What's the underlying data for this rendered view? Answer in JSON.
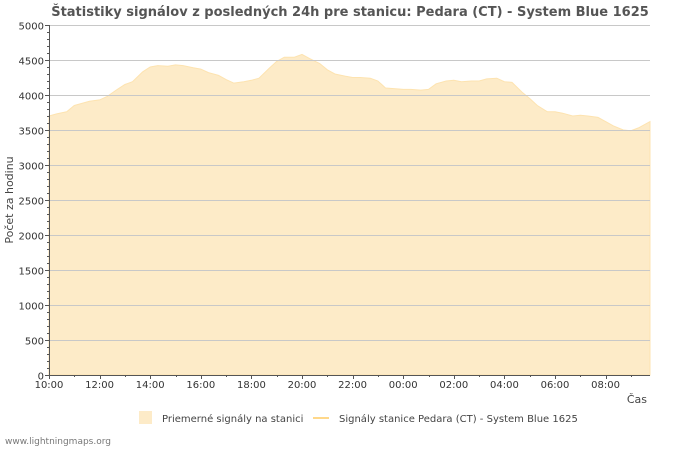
{
  "chart_data": {
    "type": "area",
    "title": "Štatistiky signálov z posledných 24h pre stanicu: Pedara (CT) - System Blue 1625",
    "xlabel": "Čas",
    "ylabel": "Počet za hodinu",
    "ylim": [
      0,
      5000
    ],
    "y_ticks": [
      "0",
      "500",
      "1000",
      "1500",
      "2000",
      "2500",
      "3000",
      "3500",
      "4000",
      "4500",
      "5000"
    ],
    "x_ticks": [
      "10:00",
      "12:00",
      "14:00",
      "16:00",
      "18:00",
      "20:00",
      "22:00",
      "00:00",
      "02:00",
      "04:00",
      "06:00",
      "08:00"
    ],
    "x_hours_range": [
      0,
      23.8
    ],
    "series": [
      {
        "name": "Priemerné signály na stanici",
        "color_fill": "#fdebc8",
        "color_stroke": "#fde3b0",
        "x_hours": [
          0,
          0.3,
          0.7,
          1.0,
          1.3,
          1.6,
          2.0,
          2.3,
          2.7,
          3.0,
          3.3,
          3.7,
          4.0,
          4.3,
          4.7,
          5.0,
          5.3,
          5.7,
          6.0,
          6.3,
          6.7,
          7.0,
          7.3,
          7.7,
          8.0,
          8.3,
          8.7,
          9.0,
          9.3,
          9.7,
          10.0,
          10.3,
          10.7,
          11.0,
          11.3,
          11.7,
          12.0,
          12.3,
          12.7,
          13.0,
          13.3,
          13.7,
          14.0,
          14.3,
          14.7,
          15.0,
          15.3,
          15.7,
          16.0,
          16.3,
          16.7,
          17.0,
          17.3,
          17.7,
          18.0,
          18.3,
          18.7,
          19.0,
          19.3,
          19.7,
          20.0,
          20.3,
          20.7,
          21.0,
          21.3,
          21.7,
          22.0,
          22.3,
          22.7,
          23.0,
          23.3,
          23.8
        ],
        "values": [
          3700,
          3730,
          3760,
          3850,
          3880,
          3910,
          3930,
          3980,
          4080,
          4150,
          4190,
          4330,
          4400,
          4420,
          4410,
          4430,
          4420,
          4390,
          4370,
          4320,
          4280,
          4220,
          4170,
          4190,
          4210,
          4240,
          4380,
          4480,
          4540,
          4540,
          4580,
          4520,
          4450,
          4360,
          4300,
          4270,
          4250,
          4250,
          4240,
          4200,
          4100,
          4090,
          4080,
          4080,
          4070,
          4080,
          4160,
          4200,
          4210,
          4190,
          4200,
          4200,
          4230,
          4240,
          4190,
          4180,
          4040,
          3950,
          3850,
          3760,
          3760,
          3740,
          3700,
          3710,
          3700,
          3680,
          3620,
          3560,
          3500,
          3490,
          3530,
          3620
        ]
      },
      {
        "name": "Signály stanice Pedara (CT) - System Blue 1625",
        "color_stroke": "#ffd88a",
        "values": []
      }
    ]
  },
  "footer": "www.lightningmaps.org"
}
